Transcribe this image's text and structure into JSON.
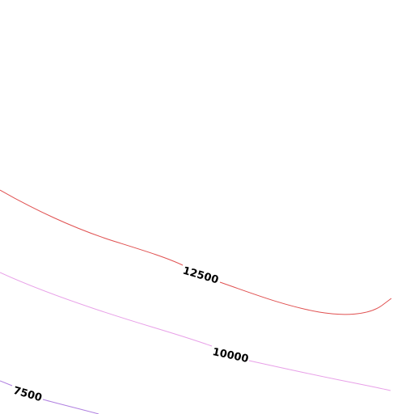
{
  "contours": [
    {
      "level": 12500,
      "color": "#e05050"
    },
    {
      "level": 10000,
      "color": "#e8a0e8"
    },
    {
      "level": 7500,
      "color": "#b080e0"
    }
  ]
}
